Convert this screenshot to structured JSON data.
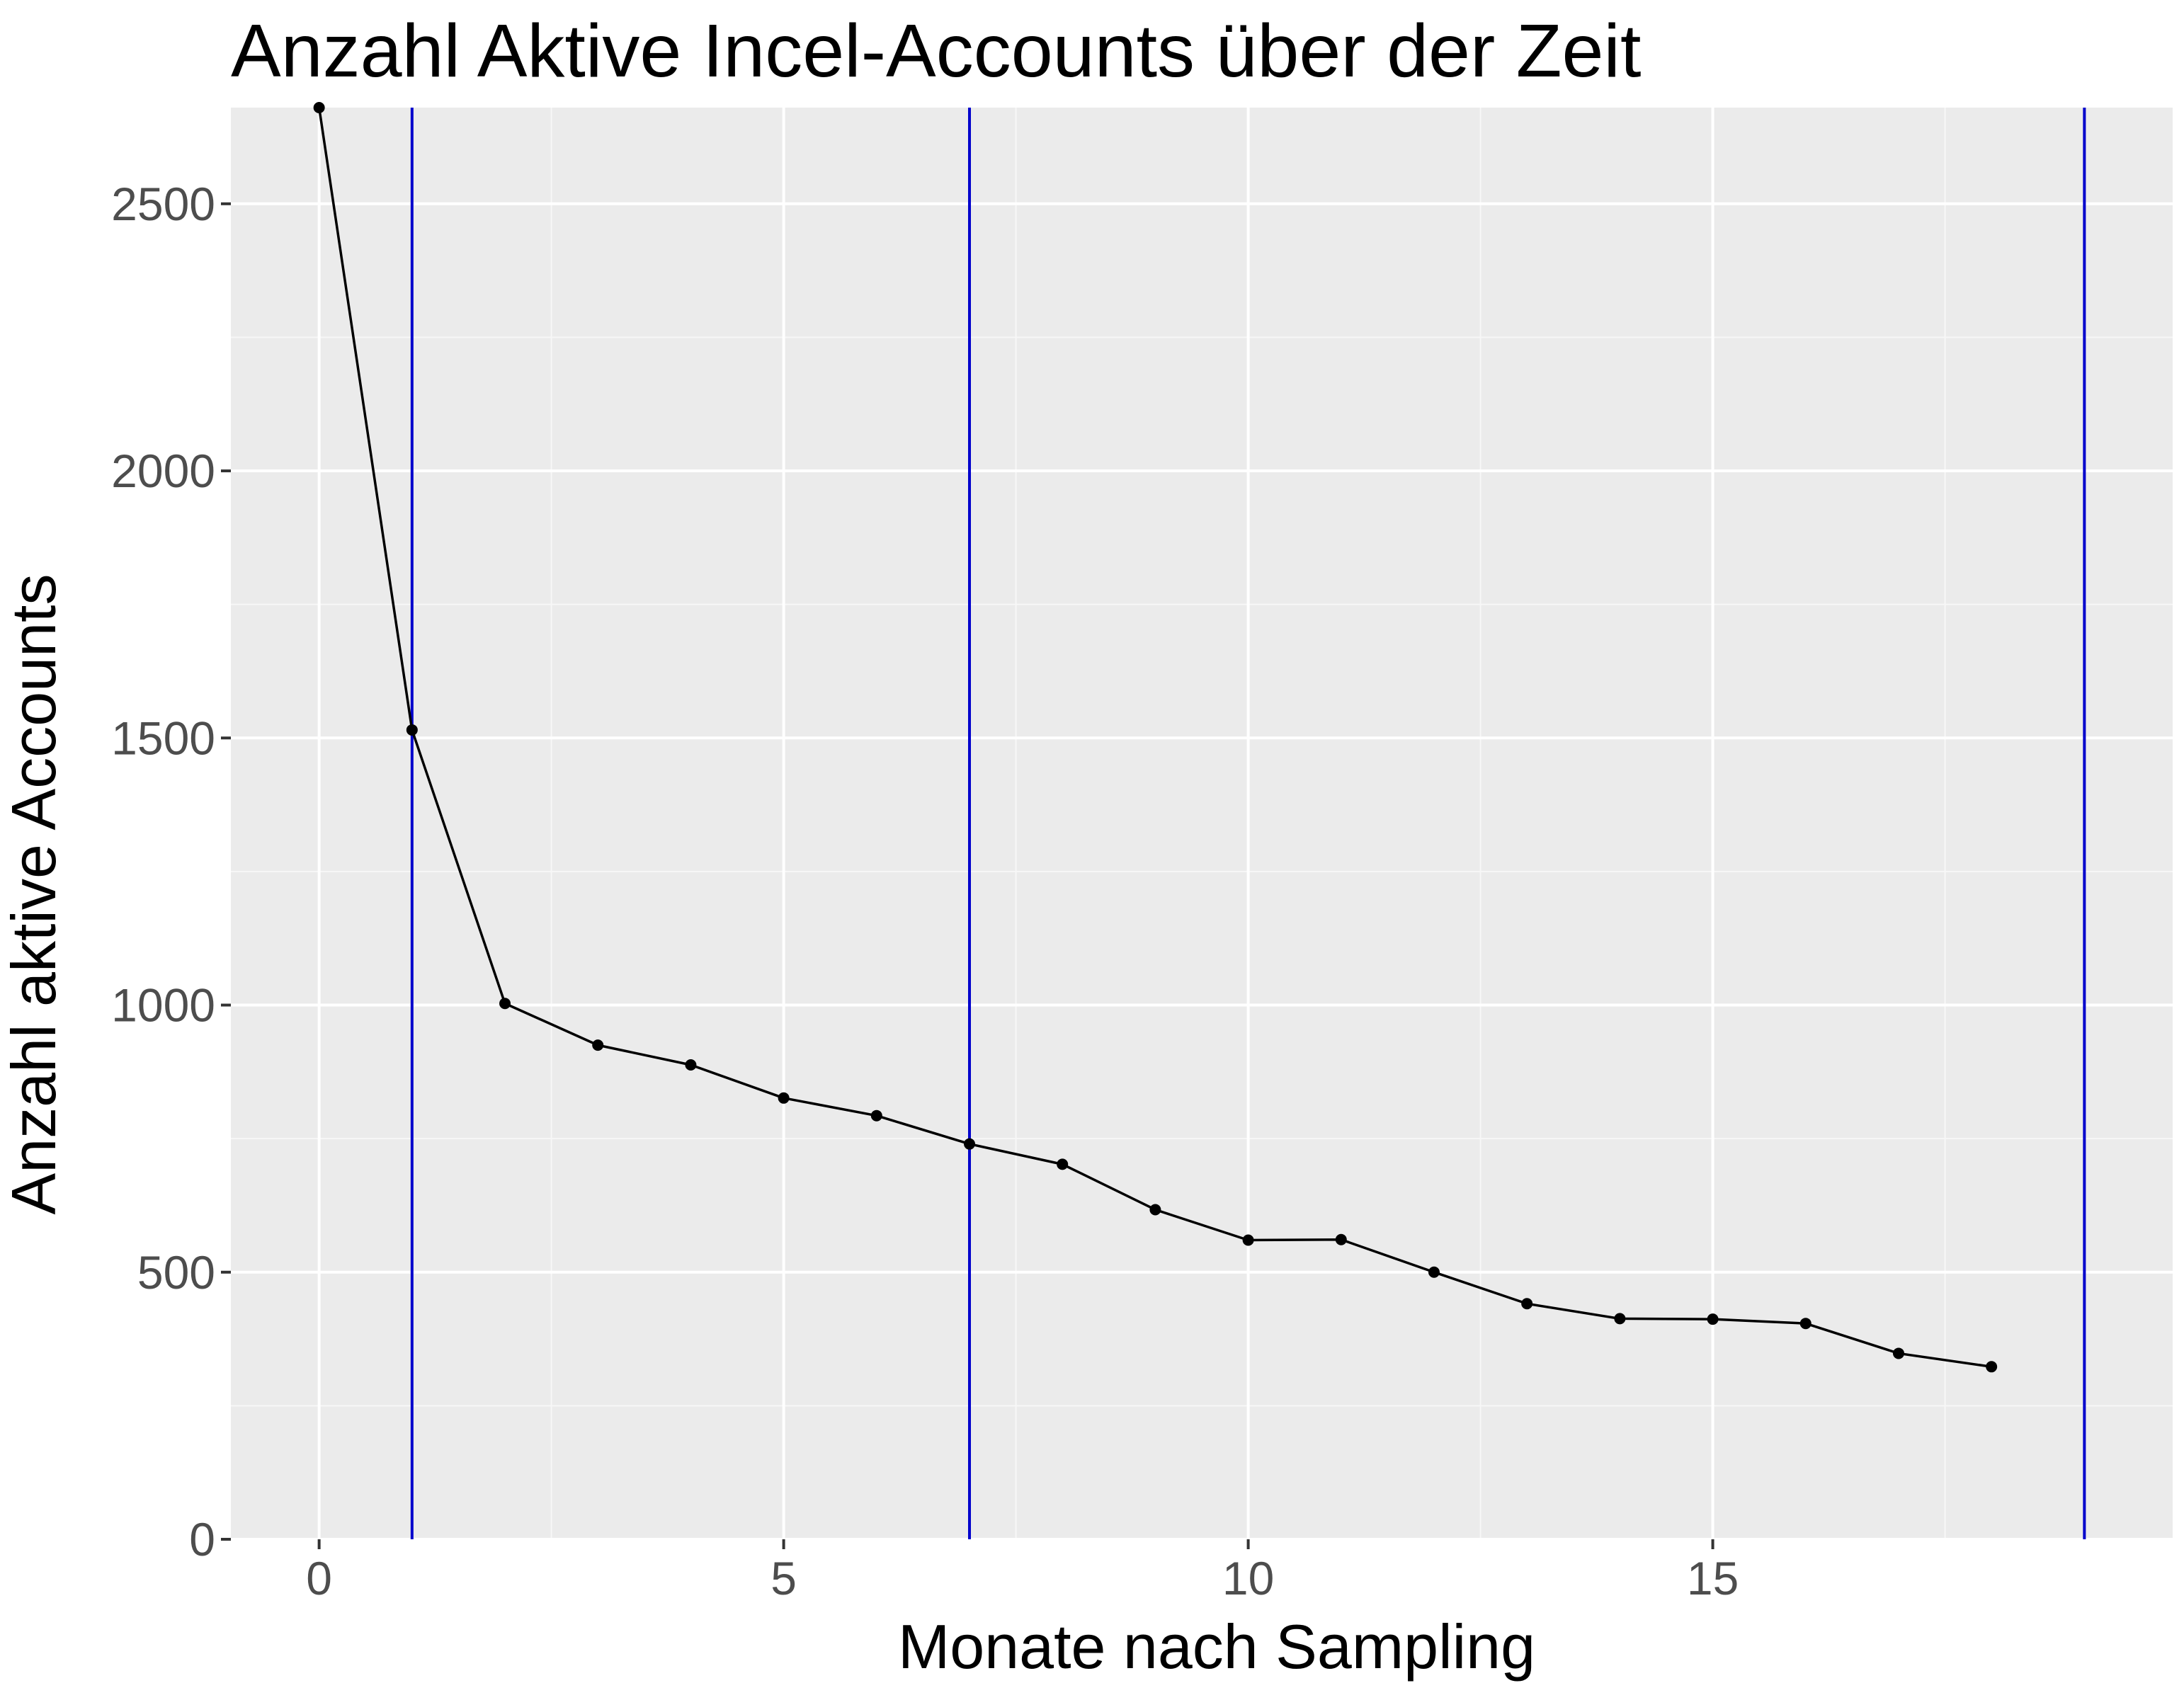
{
  "chart_data": {
    "type": "line",
    "title": "Anzahl Aktive Incel-Accounts über der Zeit",
    "xlabel": "Monate nach Sampling",
    "ylabel": "Anzahl aktive Accounts",
    "xlim": [
      -0.95,
      19.95
    ],
    "ylim": [
      0,
      2680
    ],
    "x_ticks": [
      0,
      5,
      10,
      15
    ],
    "x_tick_labels": [
      "0",
      "5",
      "10",
      "15"
    ],
    "x_minor_ticks": [
      2.5,
      7.5,
      12.5,
      17.5
    ],
    "y_ticks": [
      0,
      500,
      1000,
      1500,
      2000,
      2500
    ],
    "y_tick_labels": [
      "0",
      "500",
      "1000",
      "1500",
      "2000",
      "2500"
    ],
    "y_minor_ticks": [
      250,
      750,
      1250,
      1750,
      2250
    ],
    "grid": true,
    "legend": "none",
    "series": [
      {
        "x": [
          0,
          1,
          2,
          3,
          4,
          5,
          6,
          7,
          8,
          9,
          10,
          11,
          12,
          13,
          14,
          15,
          16,
          17,
          18
        ],
        "y": [
          2680,
          1515,
          1003,
          925,
          888,
          826,
          793,
          740,
          702,
          617,
          560,
          561,
          500,
          441,
          413,
          412,
          404,
          348,
          323
        ]
      }
    ],
    "vertical_lines": [
      {
        "x": 1,
        "color": "#0000cc"
      },
      {
        "x": 7,
        "color": "#0000cc"
      },
      {
        "x": 19,
        "color": "#0000cc"
      }
    ],
    "colors": {
      "panel_background": "#ebebeb",
      "grid_major": "#ffffff",
      "grid_minor": "#f7f7f7",
      "series_line": "#000000",
      "point": "#000000",
      "vline": "#0000cc",
      "tick_label": "#4d4d4d",
      "axis_tick": "#333333"
    }
  }
}
